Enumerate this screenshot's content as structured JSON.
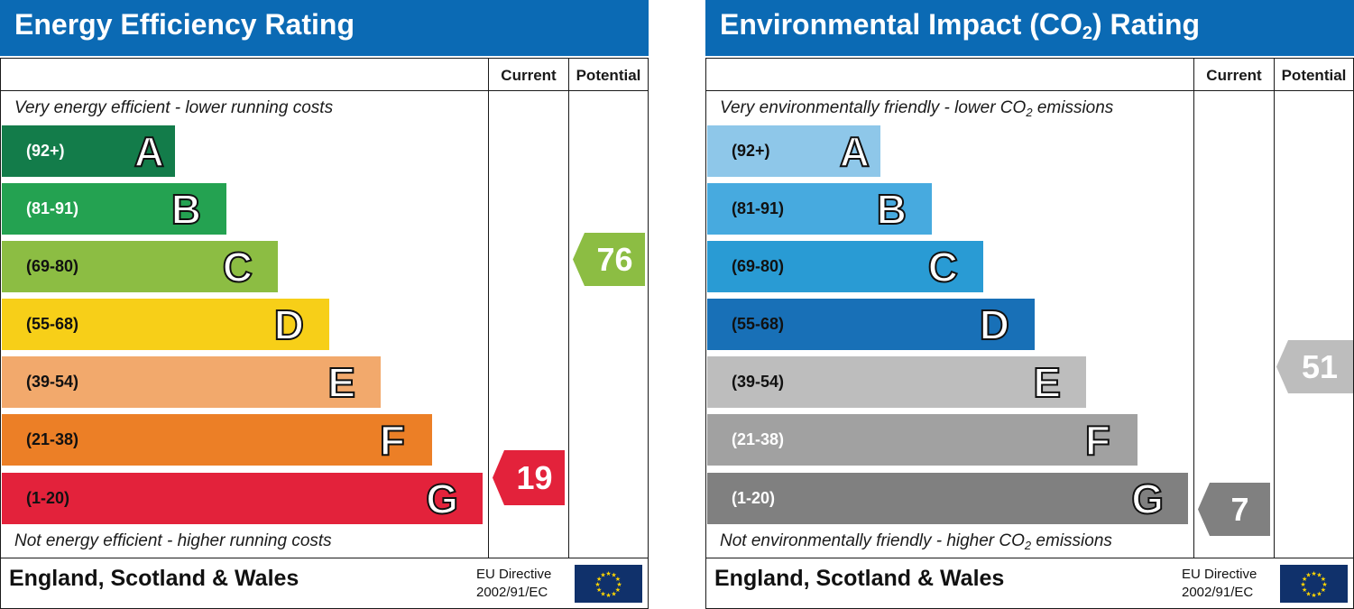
{
  "chart_data": [
    {
      "type": "bar",
      "title": "Energy Efficiency Rating",
      "columns": [
        "Current",
        "Potential"
      ],
      "top_note": "Very energy efficient - lower running costs",
      "bottom_note": "Not energy efficient - higher running costs",
      "bands": [
        {
          "letter": "A",
          "range": "(92+)",
          "color": "#137c4a",
          "text_color": "#ffffff"
        },
        {
          "letter": "B",
          "range": "(81-91)",
          "color": "#24a251",
          "text_color": "#ffffff"
        },
        {
          "letter": "C",
          "range": "(69-80)",
          "color": "#8cbd43",
          "text_color": "#111111"
        },
        {
          "letter": "D",
          "range": "(55-68)",
          "color": "#f7cf18",
          "text_color": "#111111"
        },
        {
          "letter": "E",
          "range": "(39-54)",
          "color": "#f2a96c",
          "text_color": "#111111"
        },
        {
          "letter": "F",
          "range": "(21-38)",
          "color": "#ec7f26",
          "text_color": "#111111"
        },
        {
          "letter": "G",
          "range": "(1-20)",
          "color": "#e3223b",
          "text_color": "#111111"
        }
      ],
      "current": {
        "value": 19,
        "label": "19",
        "band": "G",
        "color": "#e3223b"
      },
      "potential": {
        "value": 76,
        "label": "76",
        "band": "C",
        "color": "#8cbd43"
      },
      "region": "England, Scotland & Wales",
      "directive_line1": "EU Directive",
      "directive_line2": "2002/91/EC"
    },
    {
      "type": "bar",
      "title_main": "Environmental Impact (CO",
      "title_sub": "2",
      "title_end": ") Rating",
      "columns": [
        "Current",
        "Potential"
      ],
      "top_note_main": "Very environmentally friendly - lower CO",
      "top_note_sub": "2",
      "top_note_end": " emissions",
      "bottom_note_main": "Not environmentally friendly - higher CO",
      "bottom_note_sub": "2",
      "bottom_note_end": " emissions",
      "bands": [
        {
          "letter": "A",
          "range": "(92+)",
          "color": "#8ec7e9",
          "text_color": "#111111"
        },
        {
          "letter": "B",
          "range": "(81-91)",
          "color": "#47aadf",
          "text_color": "#111111"
        },
        {
          "letter": "C",
          "range": "(69-80)",
          "color": "#299bd4",
          "text_color": "#111111"
        },
        {
          "letter": "D",
          "range": "(55-68)",
          "color": "#1870b7",
          "text_color": "#111111"
        },
        {
          "letter": "E",
          "range": "(39-54)",
          "color": "#bdbdbd",
          "text_color": "#111111"
        },
        {
          "letter": "F",
          "range": "(21-38)",
          "color": "#a1a1a1",
          "text_color": "#ffffff"
        },
        {
          "letter": "G",
          "range": "(1-20)",
          "color": "#808080",
          "text_color": "#ffffff"
        }
      ],
      "current": {
        "value": 7,
        "label": "7",
        "band": "G",
        "color": "#808080"
      },
      "potential": {
        "value": 51,
        "label": "51",
        "band": "E",
        "color": "#bdbdbd"
      },
      "region": "England, Scotland & Wales",
      "directive_line1": "EU Directive",
      "directive_line2": "2002/91/EC"
    }
  ]
}
